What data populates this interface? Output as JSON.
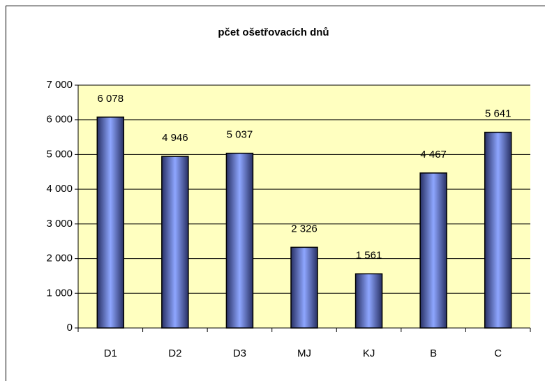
{
  "chart_data": {
    "type": "bar",
    "title": "pčet ošetřovacích dnů",
    "categories": [
      "D1",
      "D2",
      "D3",
      "MJ",
      "KJ",
      "B",
      "C"
    ],
    "values": [
      6078,
      4946,
      5037,
      2326,
      1561,
      4467,
      5641
    ],
    "value_labels": [
      "6 078",
      "4 946",
      "5 037",
      "2 326",
      "1 561",
      "4 467",
      "5 641"
    ],
    "color": "#6f86e0",
    "ylim": [
      0,
      7000
    ],
    "yticks": [
      0,
      {
        "value": 1000,
        "label": "1 000"
      },
      {
        "value": 2000,
        "label": "2 000"
      },
      {
        "value": 3000,
        "label": "3 000"
      },
      {
        "value": 4000,
        "label": "4 000"
      },
      {
        "value": 5000,
        "label": "5 000"
      },
      {
        "value": 6000,
        "label": "6 000"
      },
      {
        "value": 7000,
        "label": "7 000"
      }
    ],
    "grid": true
  }
}
